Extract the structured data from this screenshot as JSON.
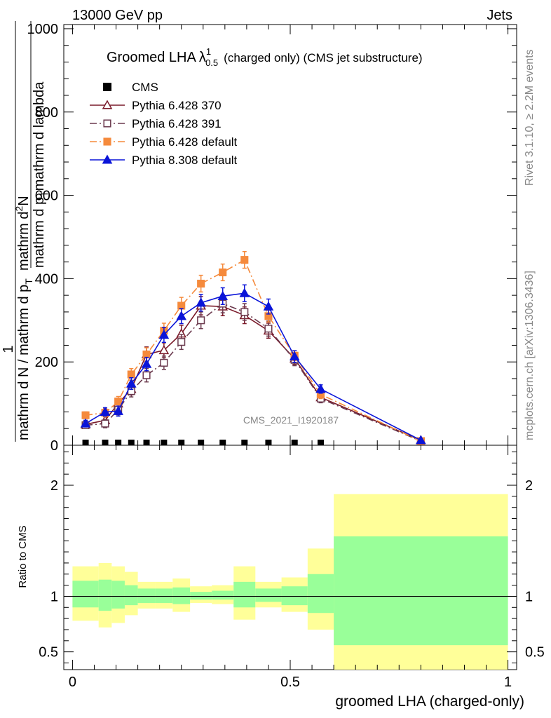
{
  "header": {
    "left": "13000 GeV pp",
    "right": "Jets"
  },
  "side": {
    "rivet": "Rivet 3.1.10, ≥ 2.2M events",
    "mcplots": "mcplots.cern.ch [arXiv:1306.3436]"
  },
  "colors": {
    "cms": "#000000",
    "p370": "#7a1a2a",
    "p391": "#6b3a4e",
    "p6def": "#f58a3c",
    "p8def": "#0a14d8",
    "band_outer": "#ffff99",
    "band_inner": "#99ff99"
  },
  "chart_data": {
    "type": "line",
    "title": "Groomed LHA",
    "title_symbol": "λ",
    "title_sup": "1",
    "title_sub": "0.5",
    "title_tail": "(charged only) (CMS jet substructure)",
    "watermark": "CMS_2021_I1920187",
    "xlabel": "groomed LHA (charged-only)",
    "ylabel_num_1": "1",
    "ylabel_den_1": "mathrm d N / mathrm d p",
    "ylabel_den_sub_1": "T",
    "ylabel_num_2": "mathrm d",
    "ylabel_num_sup_2": "2",
    "ylabel_num_tail_2": "N",
    "ylabel_den_2": "mathrm d p",
    "ylabel_den_sub_2": "T",
    "ylabel_den_tail_2": "mathrm d lambda",
    "xlim": [
      -0.02,
      1.02
    ],
    "ylim": [
      0,
      1010
    ],
    "xticks": [
      0,
      0.5,
      1
    ],
    "xtick_labels": [
      "0",
      "0.5",
      "1"
    ],
    "yticks": [
      0,
      200,
      400,
      600,
      800,
      1000
    ],
    "ytick_labels": [
      "0",
      "200",
      "400",
      "600",
      "800",
      "1000"
    ],
    "x": [
      0.03,
      0.075,
      0.105,
      0.135,
      0.17,
      0.21,
      0.25,
      0.295,
      0.345,
      0.395,
      0.45,
      0.51,
      0.57,
      0.8
    ],
    "legend": [
      "CMS",
      "Pythia 6.428 370",
      "Pythia 6.428 391",
      "Pythia 6.428 default",
      "Pythia 8.308 default"
    ],
    "series": [
      {
        "name": "CMS",
        "style": "cms",
        "values": [
          2,
          2,
          2,
          2,
          2,
          2,
          2,
          2,
          2,
          2,
          2,
          2,
          2,
          2
        ]
      },
      {
        "name": "Pythia 6.428 370",
        "style": "p370",
        "marker": "triangle-open",
        "dash": "",
        "values": [
          50,
          60,
          100,
          135,
          218,
          228,
          268,
          335,
          333,
          312,
          275,
          208,
          115,
          12
        ],
        "errors": [
          8,
          10,
          12,
          14,
          18,
          18,
          20,
          22,
          22,
          20,
          18,
          14,
          10,
          3
        ]
      },
      {
        "name": "Pythia 6.428 391",
        "style": "p391",
        "marker": "square-open",
        "dash": "10,4,2,4",
        "values": [
          48,
          52,
          85,
          130,
          168,
          198,
          248,
          300,
          340,
          320,
          280,
          205,
          112,
          10
        ],
        "errors": [
          8,
          10,
          12,
          14,
          16,
          16,
          18,
          20,
          22,
          20,
          18,
          14,
          10,
          3
        ]
      },
      {
        "name": "Pythia 6.428 default",
        "style": "p6def",
        "marker": "square-filled",
        "dash": "10,4,2,4",
        "values": [
          72,
          78,
          105,
          170,
          218,
          275,
          335,
          388,
          415,
          445,
          310,
          215,
          122,
          10
        ],
        "errors": [
          8,
          10,
          12,
          14,
          16,
          18,
          20,
          20,
          20,
          20,
          14,
          12,
          10,
          3
        ]
      },
      {
        "name": "Pythia 8.308 default",
        "style": "p8def",
        "marker": "triangle-filled",
        "dash": "",
        "values": [
          52,
          80,
          82,
          148,
          195,
          265,
          310,
          342,
          358,
          365,
          333,
          213,
          135,
          12
        ],
        "errors": [
          8,
          10,
          12,
          14,
          16,
          18,
          18,
          20,
          20,
          20,
          18,
          14,
          10,
          3
        ]
      }
    ],
    "ratio": {
      "ylabel": "Ratio to CMS",
      "ylim": [
        0.34,
        2.36
      ],
      "yticks": [
        0.5,
        1,
        2
      ],
      "ytick_labels": [
        "0.5",
        "1",
        "2"
      ],
      "bins": [
        {
          "lo": 0.0,
          "hi": 0.06,
          "outer": [
            0.78,
            1.27
          ],
          "inner": [
            0.9,
            1.14
          ]
        },
        {
          "lo": 0.06,
          "hi": 0.09,
          "outer": [
            0.72,
            1.3
          ],
          "inner": [
            0.87,
            1.15
          ]
        },
        {
          "lo": 0.09,
          "hi": 0.12,
          "outer": [
            0.76,
            1.27
          ],
          "inner": [
            0.89,
            1.14
          ]
        },
        {
          "lo": 0.12,
          "hi": 0.15,
          "outer": [
            0.83,
            1.22
          ],
          "inner": [
            0.92,
            1.1
          ]
        },
        {
          "lo": 0.15,
          "hi": 0.19,
          "outer": [
            0.89,
            1.13
          ],
          "inner": [
            0.94,
            1.07
          ]
        },
        {
          "lo": 0.19,
          "hi": 0.23,
          "outer": [
            0.89,
            1.13
          ],
          "inner": [
            0.94,
            1.07
          ]
        },
        {
          "lo": 0.23,
          "hi": 0.27,
          "outer": [
            0.86,
            1.16
          ],
          "inner": [
            0.93,
            1.08
          ]
        },
        {
          "lo": 0.27,
          "hi": 0.32,
          "outer": [
            0.94,
            1.09
          ],
          "inner": [
            0.97,
            1.04
          ]
        },
        {
          "lo": 0.32,
          "hi": 0.37,
          "outer": [
            0.93,
            1.1
          ],
          "inner": [
            0.97,
            1.05
          ]
        },
        {
          "lo": 0.37,
          "hi": 0.42,
          "outer": [
            0.79,
            1.27
          ],
          "inner": [
            0.9,
            1.13
          ]
        },
        {
          "lo": 0.42,
          "hi": 0.48,
          "outer": [
            0.9,
            1.13
          ],
          "inner": [
            0.95,
            1.07
          ]
        },
        {
          "lo": 0.48,
          "hi": 0.54,
          "outer": [
            0.86,
            1.17
          ],
          "inner": [
            0.92,
            1.09
          ]
        },
        {
          "lo": 0.54,
          "hi": 0.6,
          "outer": [
            0.7,
            1.43
          ],
          "inner": [
            0.85,
            1.2
          ]
        },
        {
          "lo": 0.6,
          "hi": 1.0,
          "outer": [
            0.34,
            1.92
          ],
          "inner": [
            0.56,
            1.54
          ]
        }
      ]
    }
  }
}
